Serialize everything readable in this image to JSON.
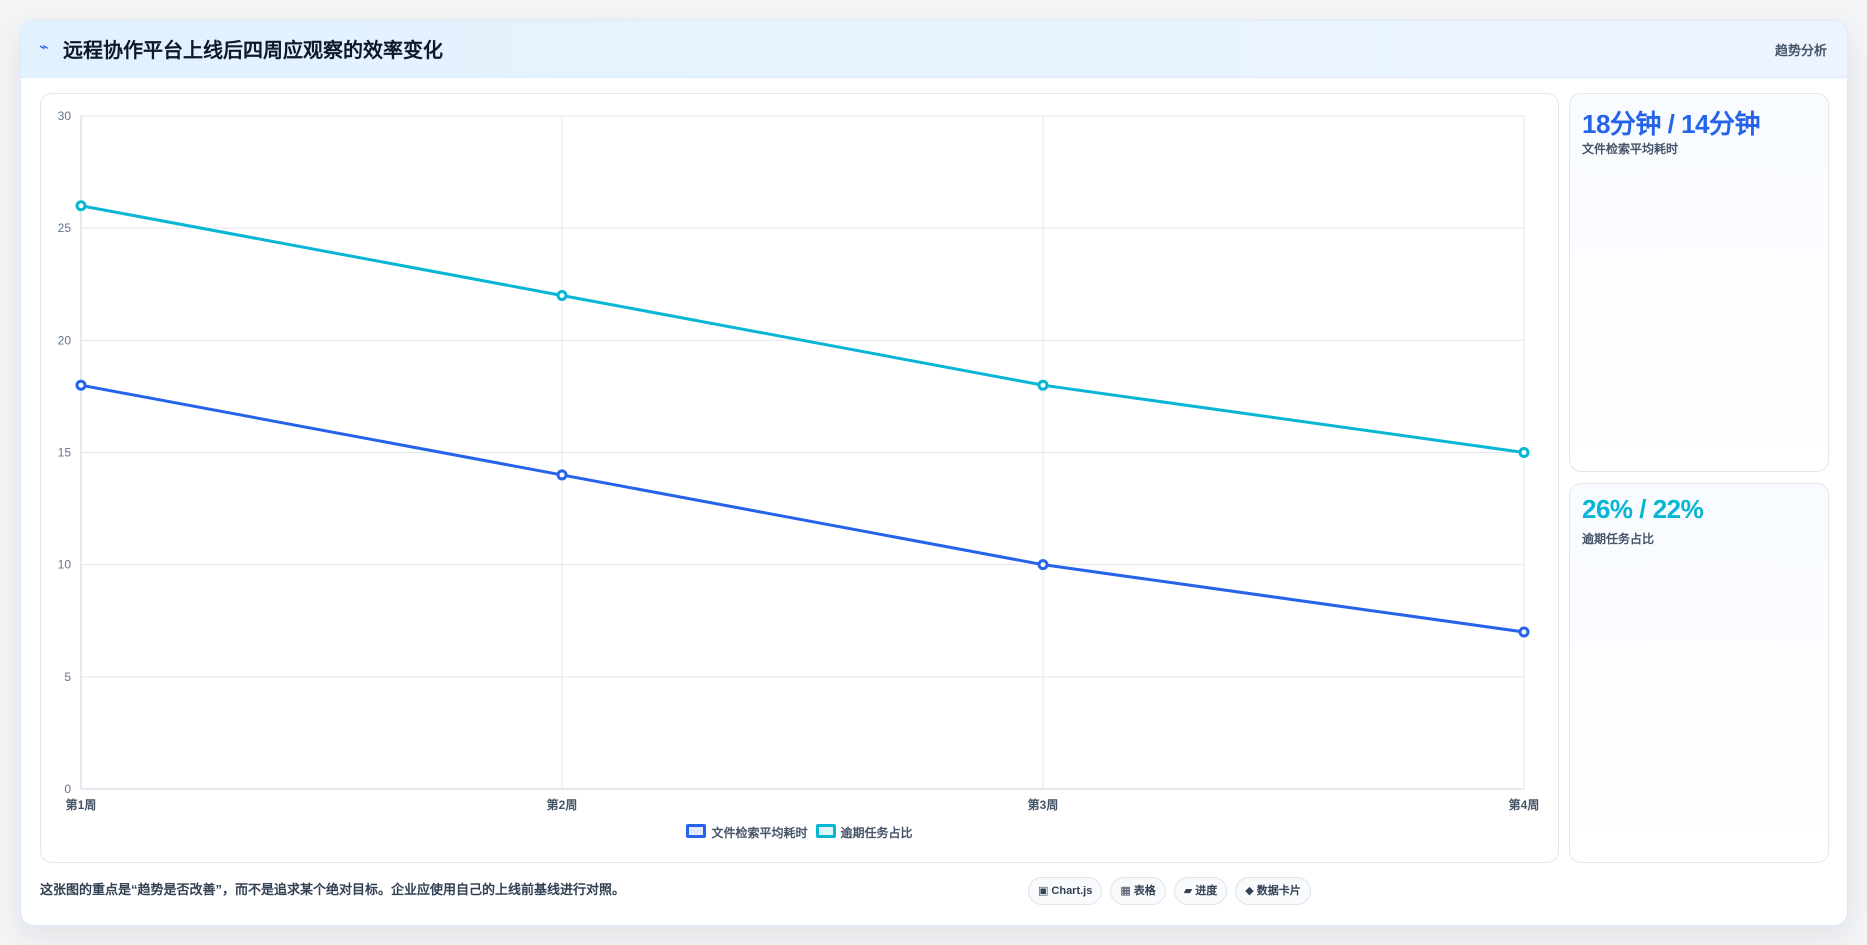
{
  "header": {
    "title": "远程协作平台上线后四周应观察的效率变化",
    "tag": "趋势分析"
  },
  "kpis": [
    {
      "value": "18分钟 / 14分钟",
      "label": "文件检索平均耗时",
      "color": "#2563eb"
    },
    {
      "value": "26% / 22%",
      "label": "逾期任务占比",
      "color": "#06b6d4"
    }
  ],
  "note": "这张图的重点是“趋势是否改善”，而不是追求某个绝对目标。企业应使用自己的上线前基线进行对照。",
  "badges": [
    {
      "icon": "▣",
      "label": "Chart.js",
      "icon_name": "chart-icon"
    },
    {
      "icon": "▦",
      "label": "表格",
      "icon_name": "table-icon"
    },
    {
      "icon": "▰",
      "label": "进度",
      "icon_name": "progress-icon"
    },
    {
      "icon": "◆",
      "label": "数据卡片",
      "icon_name": "card-icon"
    }
  ],
  "chart_data": {
    "type": "line",
    "categories": [
      "第1周",
      "第2周",
      "第3周",
      "第4周"
    ],
    "ylim": [
      0,
      30
    ],
    "yticks": [
      0,
      5,
      10,
      15,
      20,
      25,
      30
    ],
    "grid": true,
    "legend_position": "bottom",
    "series": [
      {
        "name": "文件检索平均耗时",
        "values": [
          18,
          14,
          10,
          7
        ],
        "color": "#2563eb"
      },
      {
        "name": "逾期任务占比",
        "values": [
          26,
          22,
          18,
          15
        ],
        "color": "#06b6d4"
      }
    ]
  }
}
